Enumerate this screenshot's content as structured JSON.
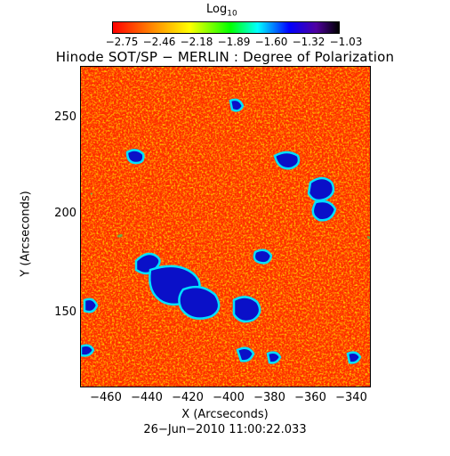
{
  "colorbar": {
    "label_base": "Log",
    "label_sub": "10",
    "ticks": [
      "−2.75",
      "−2.46",
      "−2.18",
      "−1.89",
      "−1.60",
      "−1.32",
      "−1.03"
    ],
    "colors": [
      "#ff0000",
      "#ff8c00",
      "#ffff00",
      "#00ff00",
      "#00ffff",
      "#0000ff",
      "#5000a0",
      "#000000"
    ]
  },
  "title": "Hinode SOT/SP − MERLIN : Degree of Polarization",
  "axes": {
    "y_label": "Y (Arcseconds)",
    "y_ticks": [
      "250",
      "200",
      "150"
    ],
    "x_label": "X (Arcseconds)",
    "x_ticks": [
      "−460",
      "−440",
      "−420",
      "−400",
      "−380",
      "−360",
      "−340"
    ]
  },
  "timestamp": "26−Jun−2010 11:00:22.033"
}
